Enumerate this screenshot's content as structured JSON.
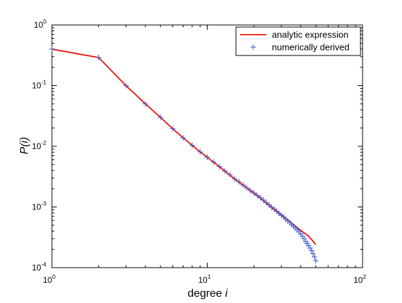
{
  "chart_data": {
    "type": "line",
    "xlabel": {
      "prefix": "degree ",
      "var": "i"
    },
    "ylabel": "P(i)",
    "x_scale": "log",
    "y_scale": "log",
    "xlim": [
      1,
      100
    ],
    "ylim": [
      0.0001,
      1
    ],
    "x_ticks": [
      {
        "value": 1,
        "base": "10",
        "exp": "0"
      },
      {
        "value": 10,
        "base": "10",
        "exp": "1"
      },
      {
        "value": 100,
        "base": "10",
        "exp": "2"
      }
    ],
    "y_ticks": [
      {
        "value": 1,
        "base": "10",
        "exp": "0"
      },
      {
        "value": 0.1,
        "base": "10",
        "exp": "-1"
      },
      {
        "value": 0.01,
        "base": "10",
        "exp": "-2"
      },
      {
        "value": 0.001,
        "base": "10",
        "exp": "-3"
      },
      {
        "value": 0.0001,
        "base": "10",
        "exp": "-4"
      }
    ],
    "grid": false,
    "legend_position": "top-right",
    "series": [
      {
        "name": "analytic expression",
        "style": "line",
        "color": "#e8100f",
        "x": [
          1,
          2,
          3,
          4,
          5,
          6,
          7,
          8,
          9,
          10,
          12,
          15,
          20,
          25,
          30,
          35,
          40,
          45,
          50
        ],
        "y": [
          0.4,
          0.29,
          0.1,
          0.05,
          0.03,
          0.0195,
          0.0138,
          0.0104,
          0.0081,
          0.0066,
          0.0046,
          0.0029,
          0.0017,
          0.00107,
          0.00074,
          0.00054,
          0.00041,
          0.00033,
          0.00024
        ]
      },
      {
        "name": "numerically derived",
        "style": "marker",
        "marker": "+",
        "color": "#3355cc",
        "x": [
          1,
          2,
          3,
          4,
          5,
          6,
          7,
          8,
          9,
          10,
          11,
          12,
          13,
          14,
          15,
          16,
          17,
          18,
          19,
          20,
          21,
          22,
          23,
          24,
          25,
          26,
          27,
          28,
          29,
          30,
          31,
          32,
          33,
          34,
          35,
          36,
          37,
          38,
          39,
          40,
          41,
          42,
          43,
          44,
          45,
          46,
          47,
          48,
          49,
          50
        ],
        "y": [
          0.4,
          0.29,
          0.1,
          0.05,
          0.03,
          0.0195,
          0.0138,
          0.0104,
          0.0081,
          0.0066,
          0.0055,
          0.0046,
          0.0039,
          0.0034,
          0.0029,
          0.0026,
          0.0023,
          0.00205,
          0.00185,
          0.0017,
          0.00155,
          0.00142,
          0.0013,
          0.00118,
          0.00108,
          0.00099,
          0.00092,
          0.00085,
          0.00078,
          0.00073,
          0.00068,
          0.00063,
          0.00059,
          0.00055,
          0.00051,
          0.00048,
          0.00045,
          0.00042,
          0.00039,
          0.00036,
          0.00033,
          0.0003,
          0.00027,
          0.00025,
          0.00023,
          0.00021,
          0.00019,
          0.00017,
          0.00015,
          0.00013
        ]
      }
    ]
  }
}
